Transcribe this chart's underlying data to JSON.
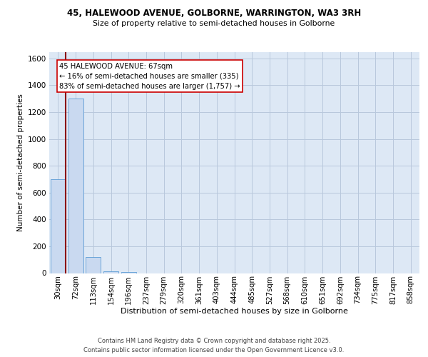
{
  "title_line1": "45, HALEWOOD AVENUE, GOLBORNE, WARRINGTON, WA3 3RH",
  "title_line2": "Size of property relative to semi-detached houses in Golborne",
  "xlabel": "Distribution of semi-detached houses by size in Golborne",
  "ylabel": "Number of semi-detached properties",
  "categories": [
    "30sqm",
    "72sqm",
    "113sqm",
    "154sqm",
    "196sqm",
    "237sqm",
    "279sqm",
    "320sqm",
    "361sqm",
    "403sqm",
    "444sqm",
    "485sqm",
    "527sqm",
    "568sqm",
    "610sqm",
    "651sqm",
    "692sqm",
    "734sqm",
    "775sqm",
    "817sqm",
    "858sqm"
  ],
  "values": [
    700,
    1300,
    120,
    15,
    10,
    0,
    0,
    0,
    0,
    0,
    0,
    0,
    0,
    0,
    0,
    0,
    0,
    0,
    0,
    0,
    0
  ],
  "bar_color": "#c9d9f0",
  "bar_edge_color": "#5b9bd5",
  "background_color": "#dde8f5",
  "grid_color": "#b8c8dc",
  "annotation_text": "45 HALEWOOD AVENUE: 67sqm\n← 16% of semi-detached houses are smaller (335)\n83% of semi-detached houses are larger (1,757) →",
  "vline_color": "#8b0000",
  "annotation_box_color": "#ffffff",
  "annotation_box_edge": "#cc0000",
  "ylim": [
    0,
    1650
  ],
  "yticks": [
    0,
    200,
    400,
    600,
    800,
    1000,
    1200,
    1400,
    1600
  ],
  "footer_line1": "Contains HM Land Registry data © Crown copyright and database right 2025.",
  "footer_line2": "Contains public sector information licensed under the Open Government Licence v3.0."
}
